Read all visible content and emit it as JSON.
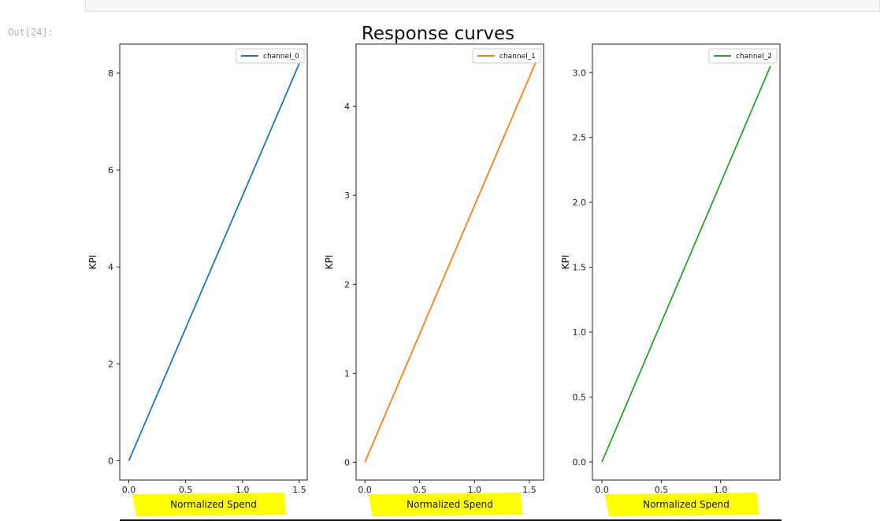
{
  "prompt": "Out[24]:",
  "chart_data": {
    "title": "Response curves",
    "type": "line",
    "subplots": [
      {
        "series": [
          {
            "name": "channel_0",
            "x": [
              0,
              1.5
            ],
            "y": [
              0,
              8.2
            ],
            "color": "#1f77b4"
          }
        ],
        "xlabel": "Normalized Spend",
        "ylabel": "KPI",
        "xlim": [
          -0.08,
          1.57
        ],
        "ylim": [
          -0.4,
          8.6
        ],
        "xticks": [
          0,
          0.5,
          1.0,
          1.5
        ],
        "xtick_labels": [
          "0.0",
          "0.5",
          "1.0",
          "1.5"
        ],
        "yticks": [
          0,
          2,
          4,
          6,
          8
        ],
        "ytick_labels": [
          "0",
          "2",
          "4",
          "6",
          "8"
        ],
        "legend": "top-right"
      },
      {
        "series": [
          {
            "name": "channel_1",
            "x": [
              0,
              1.56
            ],
            "y": [
              0,
              4.5
            ],
            "color": "#ff7f0e"
          }
        ],
        "xlabel": "Normalized Spend",
        "ylabel": "KPI",
        "xlim": [
          -0.08,
          1.63
        ],
        "ylim": [
          -0.2,
          4.7
        ],
        "xticks": [
          0,
          0.5,
          1.0,
          1.5
        ],
        "xtick_labels": [
          "0.0",
          "0.5",
          "1.0",
          "1.5"
        ],
        "yticks": [
          0,
          1,
          2,
          3,
          4
        ],
        "ytick_labels": [
          "0",
          "1",
          "2",
          "3",
          "4"
        ],
        "legend": "top-right"
      },
      {
        "series": [
          {
            "name": "channel_2",
            "x": [
              0,
              1.42
            ],
            "y": [
              0,
              3.05
            ],
            "color": "#2ca02c"
          }
        ],
        "xlabel": "Normalized Spend",
        "ylabel": "KPI",
        "xlim": [
          -0.08,
          1.5
        ],
        "ylim": [
          -0.14,
          3.22
        ],
        "xticks": [
          0,
          0.5,
          1.0
        ],
        "xtick_labels": [
          "0.0",
          "0.5",
          "1.0"
        ],
        "yticks": [
          0,
          0.5,
          1.0,
          1.5,
          2.0,
          2.5,
          3.0
        ],
        "ytick_labels": [
          "0.0",
          "0.5",
          "1.0",
          "1.5",
          "2.0",
          "2.5",
          "3.0"
        ],
        "legend": "top-right"
      }
    ]
  },
  "colors": {
    "highlight": "#ffff00",
    "axes": "#222222"
  }
}
